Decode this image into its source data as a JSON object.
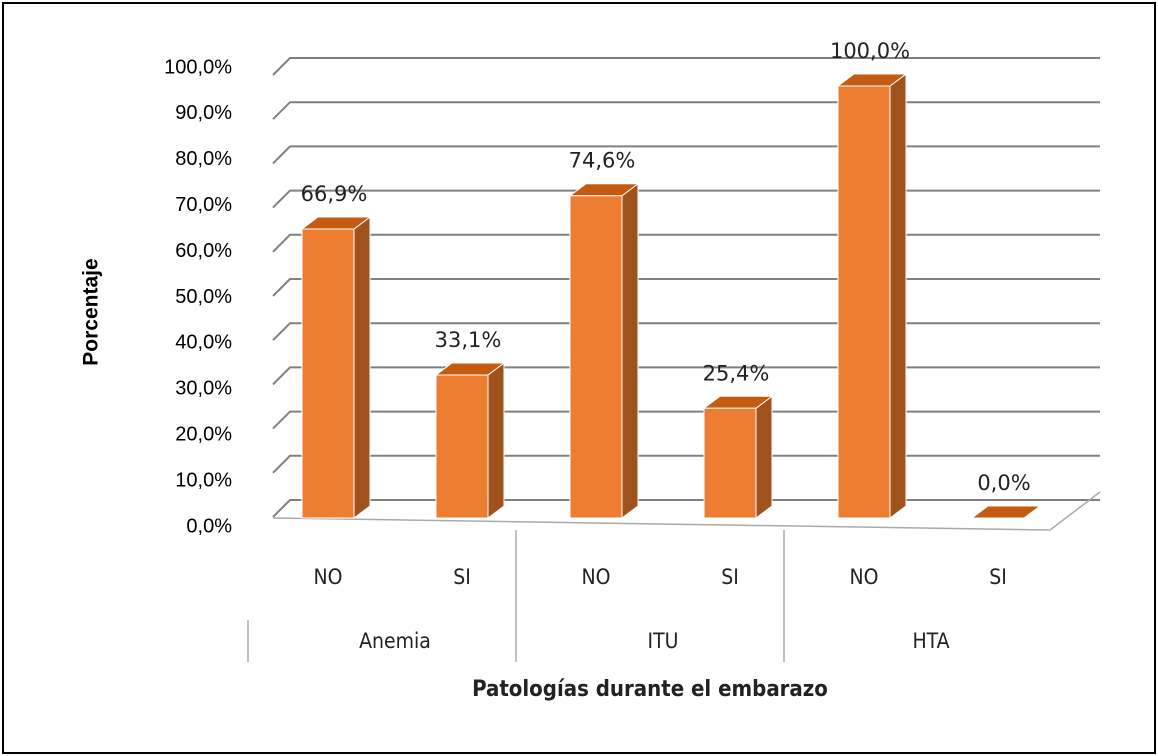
{
  "chart_data": {
    "type": "bar3d",
    "x_label": "Patologías durante el embarazo",
    "y_label": "Porcentaje",
    "categories": [
      "NO",
      "SI",
      "NO",
      "SI",
      "NO",
      "SI"
    ],
    "groups": [
      "Anemia",
      "ITU",
      "HTA"
    ],
    "values": [
      66.9,
      33.1,
      74.6,
      25.4,
      100,
      0
    ],
    "value_labels": [
      "66,9%",
      "33,1%",
      "74,6%",
      "25,4%",
      "100,0%",
      "0,0%"
    ],
    "color": "#ed7d31",
    "ylim": [
      0,
      100
    ],
    "yticks": [
      {
        "value": 0,
        "label": "0,0%"
      },
      {
        "value": 10,
        "label": "10,0%"
      },
      {
        "value": 20,
        "label": "20,0%"
      },
      {
        "value": 30,
        "label": "30,0%"
      },
      {
        "value": 40,
        "label": "40,0%"
      },
      {
        "value": 50,
        "label": "50,0%"
      },
      {
        "value": 60,
        "label": "60,0%"
      },
      {
        "value": 70,
        "label": "70,0%"
      },
      {
        "value": 80,
        "label": "80,0%"
      },
      {
        "value": 90,
        "label": "90,0%"
      },
      {
        "value": 100,
        "label": "100,0%"
      }
    ],
    "grid": true
  }
}
